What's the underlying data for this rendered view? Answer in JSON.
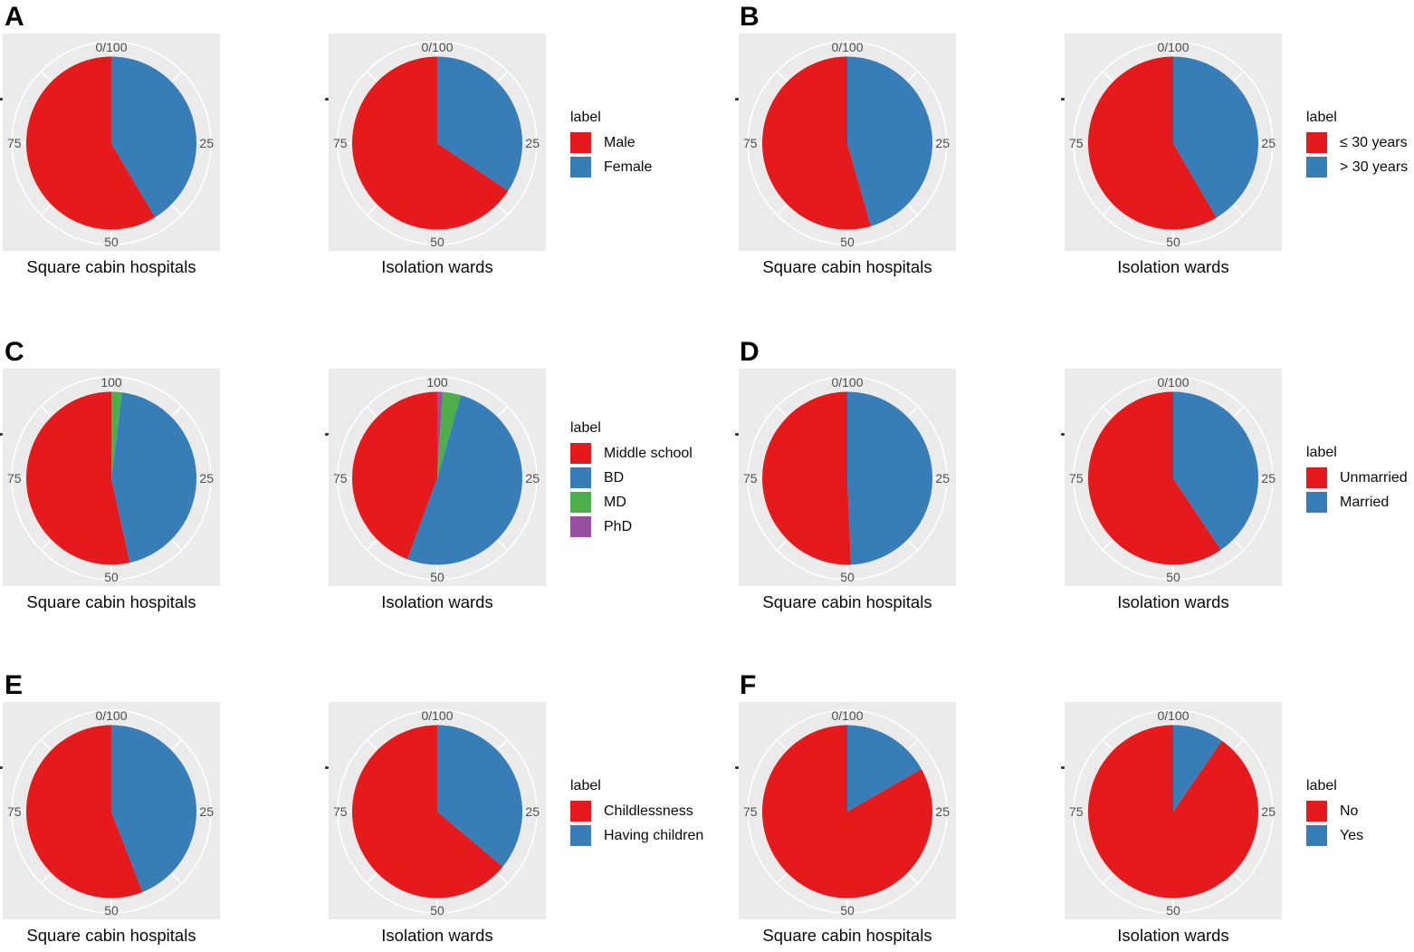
{
  "figure_colors": {
    "red": "#E41A1C",
    "blue": "#377EB8",
    "green": "#4DAF4A",
    "purple": "#984EA3",
    "panel_background": "#EBEBEB",
    "polar_grid": "#FFFFFF",
    "tick_text": "#4D4D4D"
  },
  "chart_data": [
    {
      "type": "pie",
      "panel": "A",
      "legend_title": "label",
      "legend_position": "right",
      "categories": [
        "Male",
        "Female"
      ],
      "slice_colors": [
        "#E41A1C",
        "#377EB8"
      ],
      "tick_labels": {
        "top": "0/100",
        "right": "25",
        "bottom": "50",
        "left": "75"
      },
      "series": [
        {
          "name": "Square cabin hospitals",
          "values": [
            58.6,
            41.4
          ]
        },
        {
          "name": "Isolation wards",
          "values": [
            65.7,
            34.3
          ]
        }
      ]
    },
    {
      "type": "pie",
      "panel": "B",
      "legend_title": "label",
      "legend_position": "right",
      "categories": [
        "≤ 30 years",
        "> 30 years"
      ],
      "slice_colors": [
        "#E41A1C",
        "#377EB8"
      ],
      "tick_labels": {
        "top": "0/100",
        "right": "25",
        "bottom": "50",
        "left": "75"
      },
      "series": [
        {
          "name": "Square cabin hospitals",
          "values": [
            54.5,
            45.5
          ]
        },
        {
          "name": "Isolation wards",
          "values": [
            58.5,
            41.5
          ]
        }
      ]
    },
    {
      "type": "pie",
      "panel": "C",
      "legend_title": "label",
      "legend_position": "right",
      "categories": [
        "Middle school",
        "BD",
        "MD",
        "PhD"
      ],
      "slice_colors": [
        "#E41A1C",
        "#377EB8",
        "#4DAF4A",
        "#984EA3"
      ],
      "tick_labels": {
        "top": "100",
        "right": "25",
        "bottom": "50",
        "left": "75"
      },
      "series": [
        {
          "name": "Square cabin hospitals",
          "values": [
            53.5,
            44.5,
            2.0,
            0.0
          ]
        },
        {
          "name": "Isolation wards",
          "values": [
            44.3,
            51.2,
            3.5,
            1.0
          ]
        }
      ]
    },
    {
      "type": "pie",
      "panel": "D",
      "legend_title": "label",
      "legend_position": "right",
      "categories": [
        "Unmarried",
        "Married"
      ],
      "slice_colors": [
        "#E41A1C",
        "#377EB8"
      ],
      "tick_labels": {
        "top": "0/100",
        "right": "25",
        "bottom": "50",
        "left": "75"
      },
      "series": [
        {
          "name": "Square cabin hospitals",
          "values": [
            50.7,
            49.3
          ]
        },
        {
          "name": "Isolation wards",
          "values": [
            59.5,
            40.5
          ]
        }
      ]
    },
    {
      "type": "pie",
      "panel": "E",
      "legend_title": "label",
      "legend_position": "right",
      "categories": [
        "Childlessness",
        "Having children"
      ],
      "slice_colors": [
        "#E41A1C",
        "#377EB8"
      ],
      "tick_labels": {
        "top": "0/100",
        "right": "25",
        "bottom": "50",
        "left": "75"
      },
      "series": [
        {
          "name": "Square cabin hospitals",
          "values": [
            56.0,
            44.0
          ]
        },
        {
          "name": "Isolation wards",
          "values": [
            64.0,
            36.0
          ]
        }
      ]
    },
    {
      "type": "pie",
      "panel": "F",
      "legend_title": "label",
      "legend_position": "right",
      "categories": [
        "No",
        "Yes"
      ],
      "slice_colors": [
        "#E41A1C",
        "#377EB8"
      ],
      "tick_labels": {
        "top": "0/100",
        "right": "25",
        "bottom": "50",
        "left": "75"
      },
      "series": [
        {
          "name": "Square cabin hospitals",
          "values": [
            83.2,
            16.8
          ]
        },
        {
          "name": "Isolation wards",
          "values": [
            90.3,
            9.7
          ]
        }
      ]
    }
  ]
}
